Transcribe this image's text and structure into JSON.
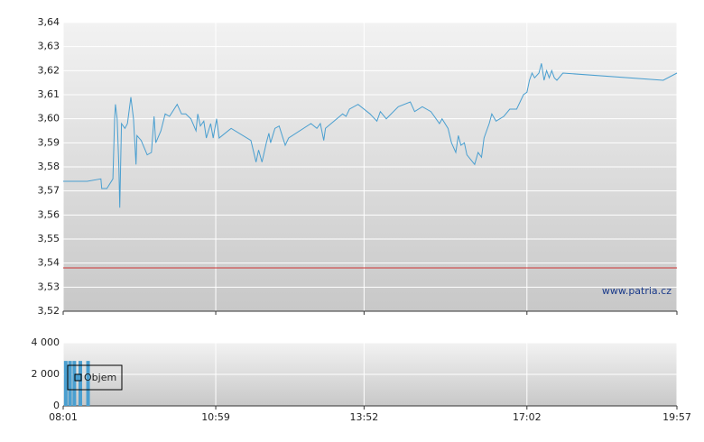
{
  "chart_data": [
    {
      "type": "line",
      "color": "#4a9fd0",
      "x": [
        481,
        509,
        525,
        526,
        532,
        539,
        541,
        542,
        544,
        546,
        547,
        549,
        553,
        556,
        560,
        563,
        566,
        567,
        572,
        579,
        584,
        587,
        589,
        595,
        600,
        605,
        614,
        619,
        624,
        630,
        636,
        638,
        641,
        645,
        648,
        653,
        656,
        660,
        663,
        677,
        700,
        706,
        709,
        713,
        718,
        721,
        723,
        728,
        733,
        740,
        744,
        770,
        777,
        781,
        785,
        787,
        807,
        811,
        815,
        825,
        839,
        847,
        851,
        858,
        872,
        886,
        891,
        900,
        910,
        920,
        923,
        930,
        934,
        939,
        942,
        945,
        949,
        952,
        961,
        965,
        969,
        972,
        978,
        981,
        986,
        995,
        1002,
        1010,
        1018,
        1022,
        1025,
        1028,
        1031,
        1036,
        1039,
        1042,
        1045,
        1048,
        1051,
        1054,
        1057,
        1064,
        1181,
        1197
      ],
      "values": [
        3.574,
        3.574,
        3.575,
        3.571,
        3.571,
        3.575,
        3.6,
        3.606,
        3.6,
        3.58,
        3.563,
        3.598,
        3.596,
        3.598,
        3.609,
        3.6,
        3.581,
        3.593,
        3.591,
        3.585,
        3.586,
        3.601,
        3.59,
        3.595,
        3.602,
        3.601,
        3.606,
        3.602,
        3.602,
        3.6,
        3.595,
        3.602,
        3.597,
        3.599,
        3.592,
        3.598,
        3.592,
        3.6,
        3.592,
        3.596,
        3.591,
        3.582,
        3.587,
        3.582,
        3.59,
        3.594,
        3.59,
        3.596,
        3.597,
        3.589,
        3.592,
        3.598,
        3.596,
        3.598,
        3.591,
        3.596,
        3.602,
        3.601,
        3.604,
        3.606,
        3.602,
        3.599,
        3.603,
        3.6,
        3.605,
        3.607,
        3.603,
        3.605,
        3.603,
        3.598,
        3.6,
        3.596,
        3.59,
        3.586,
        3.593,
        3.589,
        3.59,
        3.585,
        3.581,
        3.586,
        3.584,
        3.592,
        3.598,
        3.602,
        3.599,
        3.601,
        3.604,
        3.604,
        3.61,
        3.611,
        3.616,
        3.619,
        3.617,
        3.619,
        3.623,
        3.616,
        3.62,
        3.617,
        3.62,
        3.617,
        3.616,
        3.619,
        3.616,
        3.619
      ],
      "reference_line": {
        "value": 3.538,
        "color": "#cc3333"
      },
      "ylim": [
        3.52,
        3.64
      ],
      "yticks": [
        {
          "value": 3.52,
          "label": "3,52"
        },
        {
          "value": 3.53,
          "label": "3,53"
        },
        {
          "value": 3.54,
          "label": "3,54"
        },
        {
          "value": 3.55,
          "label": "3,55"
        },
        {
          "value": 3.56,
          "label": "3,56"
        },
        {
          "value": 3.57,
          "label": "3,57"
        },
        {
          "value": 3.58,
          "label": "3,58"
        },
        {
          "value": 3.59,
          "label": "3,59"
        },
        {
          "value": 3.6,
          "label": "3,60"
        },
        {
          "value": 3.61,
          "label": "3,61"
        },
        {
          "value": 3.62,
          "label": "3,62"
        },
        {
          "value": 3.63,
          "label": "3,63"
        },
        {
          "value": 3.64,
          "label": "3,64"
        }
      ],
      "grid": true,
      "watermark": "www.patria.cz"
    },
    {
      "type": "bar",
      "series": [
        {
          "name": "Objem",
          "color": "#4a9fd0",
          "x": [
            484,
            489,
            494,
            501,
            510
          ],
          "values": [
            2850,
            2850,
            2850,
            2850,
            2850
          ]
        }
      ],
      "xlim": [
        481,
        1197
      ],
      "xticks": [
        {
          "value": 481,
          "label": "08:01"
        },
        {
          "value": 659,
          "label": "10:59"
        },
        {
          "value": 832,
          "label": "13:52"
        },
        {
          "value": 1022,
          "label": "17:02"
        },
        {
          "value": 1197,
          "label": "19:57"
        }
      ],
      "ylim": [
        0,
        4000
      ],
      "yticks": [
        0,
        {
          "value": 2000,
          "label": "2 000"
        },
        {
          "value": 4000,
          "label": "4 000"
        }
      ],
      "grid": true,
      "legend": "upper-left"
    }
  ]
}
